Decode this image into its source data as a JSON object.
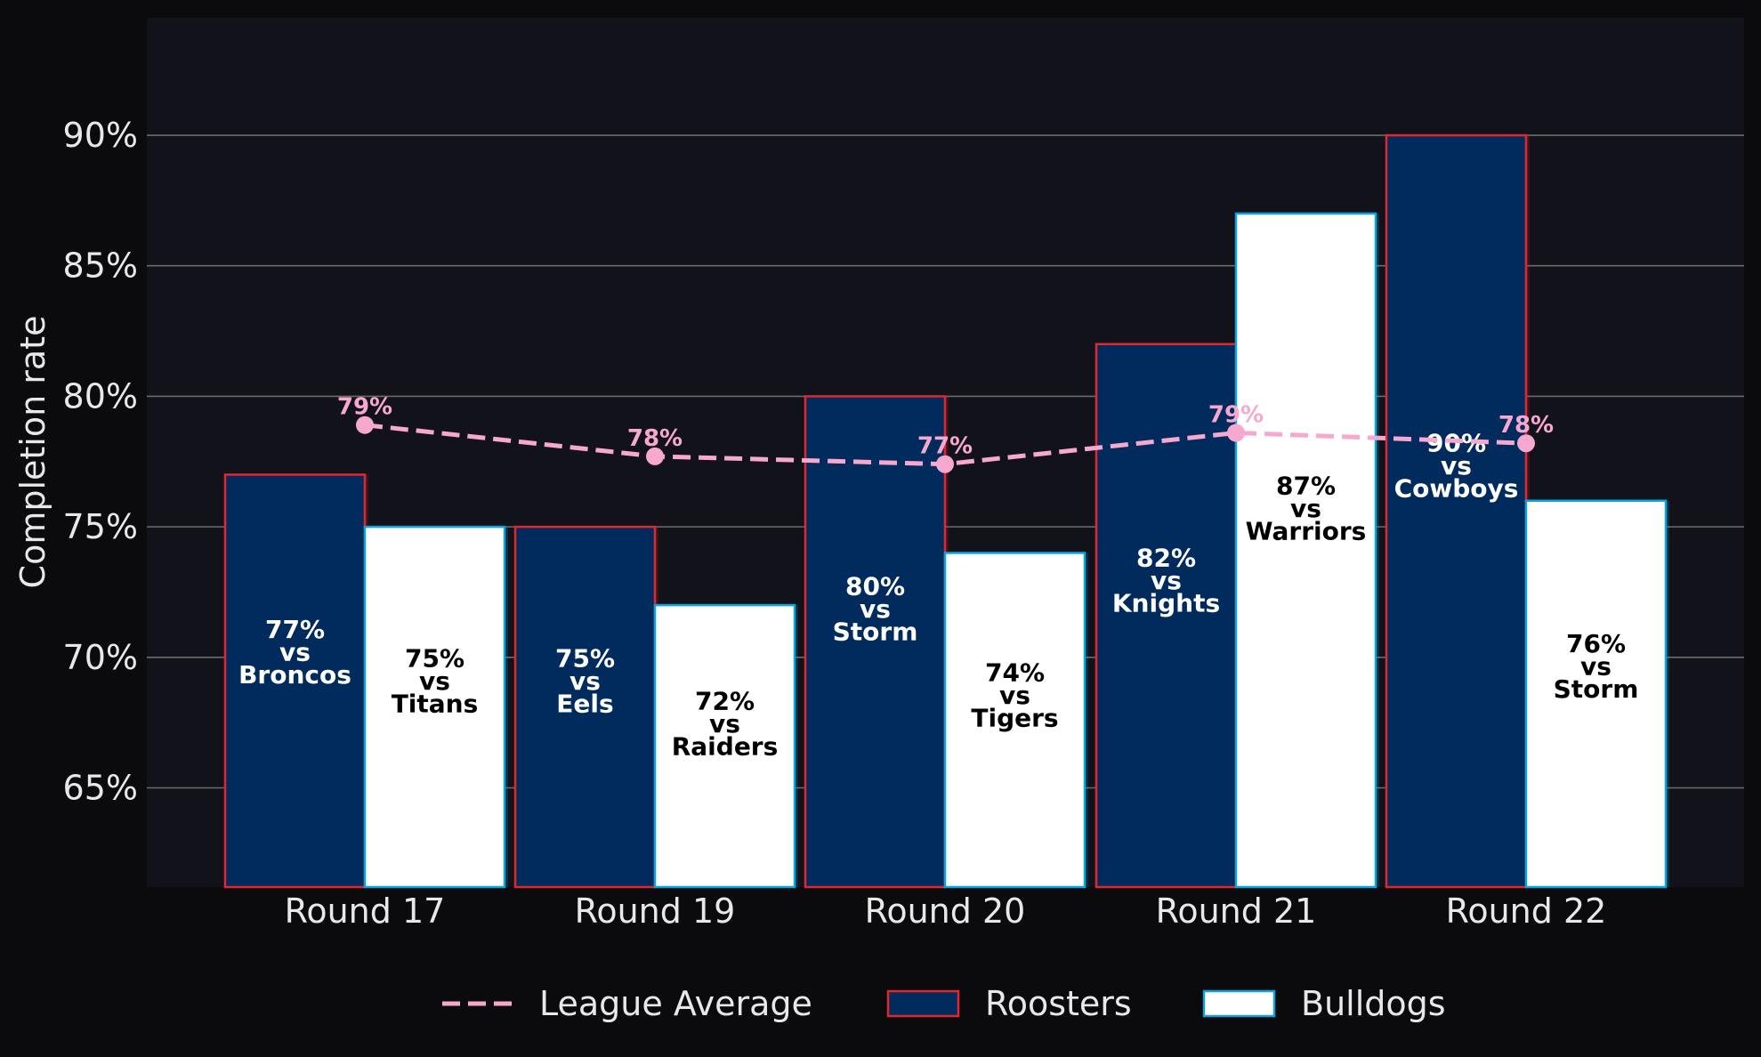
{
  "chart_data": {
    "type": "bar",
    "xlabel": "",
    "ylabel": "Completion rate",
    "ylim": [
      61.2,
      94.5
    ],
    "yticks": [
      65,
      70,
      75,
      80,
      85,
      90
    ],
    "ytick_format": "{v}%",
    "grid": true,
    "legend_position": "bottom",
    "categories": [
      "Round 17",
      "Round 19",
      "Round 20",
      "Round 21",
      "Round 22"
    ],
    "series": [
      {
        "name": "Roosters",
        "kind": "bar",
        "values": [
          77,
          75,
          80,
          82,
          90
        ],
        "opponents": [
          "Broncos",
          "Eels",
          "Storm",
          "Knights",
          "Cowboys"
        ],
        "fill": "#002b5c",
        "edge": "#e0262e",
        "label_color": "#ffffff"
      },
      {
        "name": "Bulldogs",
        "kind": "bar",
        "values": [
          75,
          72,
          74,
          87,
          76
        ],
        "opponents": [
          "Titans",
          "Raiders",
          "Tigers",
          "Warriors",
          "Storm"
        ],
        "fill": "#ffffff",
        "edge": "#0aa5e0",
        "label_color": "#000000"
      },
      {
        "name": "League Average",
        "kind": "line",
        "style": "dashed",
        "values": [
          78.9,
          77.7,
          77.4,
          78.6,
          78.2
        ],
        "labels": [
          "79%",
          "78%",
          "77%",
          "79%",
          "78%"
        ],
        "color": "#f7a8cf"
      }
    ],
    "legend": [
      "League Average",
      "Roosters",
      "Bulldogs"
    ],
    "vs_word": "vs"
  },
  "colors": {
    "page_bg": "#0b0b0e",
    "plot_bg": "#12131a",
    "grid": "#6b6b6b",
    "tick_text": "#e8e8e8"
  }
}
